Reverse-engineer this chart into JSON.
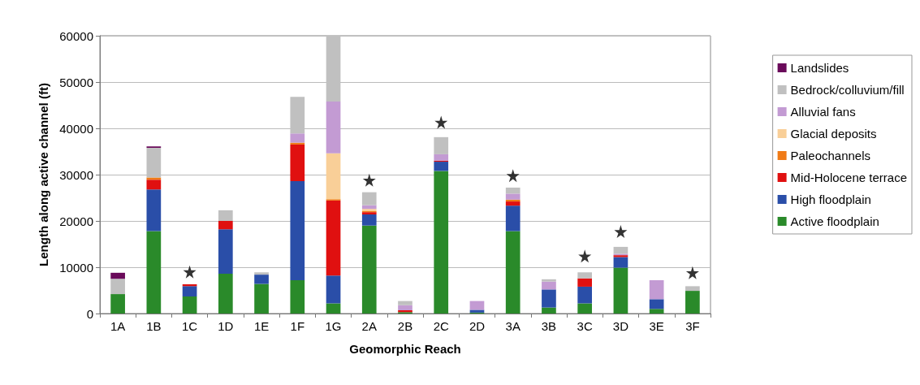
{
  "chart_data": {
    "type": "bar",
    "stacked": true,
    "xlabel": "Geomorphic Reach",
    "ylabel": "Length along active channel (ft)",
    "categories": [
      "1A",
      "1B",
      "1C",
      "1D",
      "1E",
      "1F",
      "1G",
      "2A",
      "2B",
      "2C",
      "2D",
      "3A",
      "3B",
      "3C",
      "3D",
      "3E",
      "3F"
    ],
    "series": [
      {
        "name": "Active floodplain",
        "color": "#2a8a2a",
        "values": [
          4200,
          17800,
          3700,
          8600,
          6400,
          7200,
          2200,
          19000,
          300,
          30800,
          200,
          17800,
          1300,
          2200,
          9900,
          1000,
          4900
        ]
      },
      {
        "name": "High floodplain",
        "color": "#2a4ea8",
        "values": [
          0,
          9000,
          2200,
          9600,
          2000,
          21400,
          6000,
          2400,
          0,
          2000,
          600,
          5500,
          3900,
          3600,
          2300,
          2100,
          0
        ]
      },
      {
        "name": "Mid-Holocene terrace",
        "color": "#e01010",
        "values": [
          0,
          2100,
          400,
          1800,
          0,
          7900,
          16200,
          500,
          400,
          200,
          0,
          900,
          0,
          1800,
          400,
          0,
          0
        ]
      },
      {
        "name": "Paleochannels",
        "color": "#f07b17",
        "values": [
          0,
          500,
          0,
          0,
          0,
          400,
          300,
          200,
          0,
          0,
          0,
          400,
          0,
          0,
          0,
          0,
          0
        ]
      },
      {
        "name": "Glacial deposits",
        "color": "#f9cf98",
        "values": [
          0,
          0,
          0,
          0,
          0,
          0,
          9900,
          500,
          0,
          0,
          0,
          0,
          0,
          0,
          0,
          0,
          0
        ]
      },
      {
        "name": "Alluvial fans",
        "color": "#c39bd3",
        "values": [
          0,
          0,
          0,
          0,
          0,
          2000,
          11200,
          800,
          1100,
          1400,
          1900,
          1300,
          1700,
          0,
          300,
          4100,
          0
        ]
      },
      {
        "name": "Bedrock/colluvium/fill",
        "color": "#c0c0c0",
        "values": [
          3300,
          6400,
          0,
          2300,
          500,
          7900,
          14200,
          2800,
          900,
          3700,
          0,
          1300,
          500,
          1300,
          1500,
          0,
          1000
        ]
      },
      {
        "name": "Landslides",
        "color": "#6a0a5a",
        "values": [
          1300,
          300,
          0,
          0,
          0,
          0,
          0,
          0,
          0,
          0,
          0,
          0,
          0,
          0,
          0,
          0,
          0
        ]
      },
      {
        "type": "scatter",
        "marker": "star",
        "color": "#000000",
        "x": [
          "1C",
          "2A",
          "2C",
          "3A",
          "3C",
          "3D",
          "3F"
        ],
        "values": [
          9000,
          28800,
          41300,
          29800,
          12400,
          17700,
          8800
        ]
      }
    ],
    "ylim": [
      0,
      60000
    ],
    "yticks": [
      0,
      10000,
      20000,
      30000,
      40000,
      50000,
      60000
    ],
    "grid": "y",
    "legend": "right"
  }
}
